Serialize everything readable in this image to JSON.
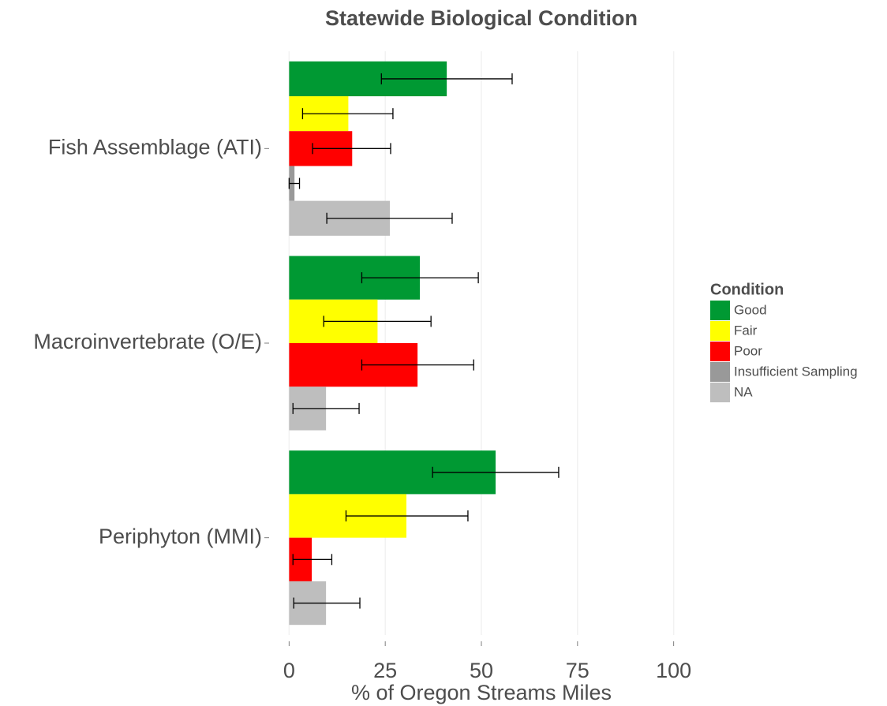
{
  "chart_data": {
    "type": "bar",
    "orientation": "horizontal",
    "title": "Statewide Biological Condition",
    "xlabel": "% of Oregon Streams Miles",
    "legend_title": "Condition",
    "legend": "right",
    "grid": true,
    "categories": [
      "Fish Assemblage (ATI)",
      "Macroinvertebrate (O/E)",
      "Periphyton (MMI)"
    ],
    "xlim": [
      -5,
      105
    ],
    "xticks": [
      0,
      25,
      50,
      75,
      100
    ],
    "series": [
      {
        "name": "Good",
        "color": "#009933",
        "values": [
          41.0,
          34.0,
          53.7
        ],
        "error_low": [
          24.0,
          18.9,
          37.3
        ],
        "error_high": [
          58.0,
          49.2,
          70.1
        ]
      },
      {
        "name": "Fair",
        "color": "#ffff00",
        "values": [
          15.4,
          23.0,
          30.5
        ],
        "error_low": [
          3.5,
          9.0,
          14.8
        ],
        "error_high": [
          27.0,
          36.9,
          46.5
        ]
      },
      {
        "name": "Poor",
        "color": "#ff0000",
        "values": [
          16.4,
          33.4,
          5.9
        ],
        "error_low": [
          6.1,
          18.9,
          1.0
        ],
        "error_high": [
          26.4,
          48.0,
          11.1
        ]
      },
      {
        "name": "Insufficient Sampling",
        "color": "#999999",
        "values": [
          1.4,
          null,
          null
        ],
        "error_low": [
          0,
          null,
          null
        ],
        "error_high": [
          2.7,
          null,
          null
        ]
      },
      {
        "name": "NA",
        "color": "#bebebe",
        "values": [
          26.2,
          9.6,
          9.6
        ],
        "error_low": [
          9.8,
          1.0,
          1.2
        ],
        "error_high": [
          42.4,
          18.2,
          18.4
        ]
      }
    ]
  }
}
